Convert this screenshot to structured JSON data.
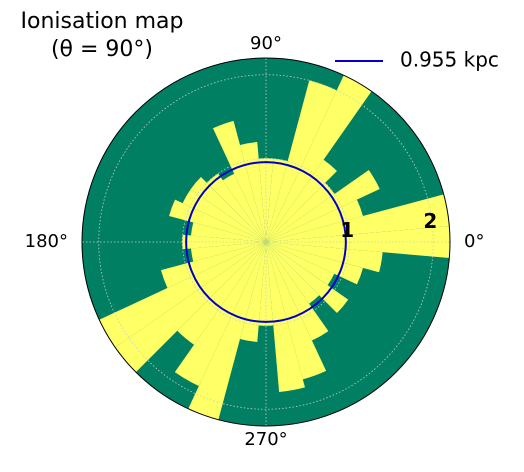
{
  "chart_data": {
    "type": "polar",
    "title": "Ionisation map",
    "subtitle": "(θ = 90°)",
    "rlim": [
      0,
      2.2
    ],
    "rticks": [
      1,
      2
    ],
    "thetaticks": [
      {
        "value": 0,
        "label": "0°"
      },
      {
        "value": 90,
        "label": "90°"
      },
      {
        "value": 180,
        "label": "180°"
      },
      {
        "value": 270,
        "label": "270°"
      }
    ],
    "grid": true,
    "legend": "upper right",
    "map": {
      "background": "#007f62",
      "color": "#ffff66",
      "x": [
        0,
        10,
        20,
        30,
        40,
        50,
        60,
        70,
        80,
        90,
        100,
        110,
        120,
        130,
        140,
        150,
        160,
        170,
        180,
        190,
        200,
        210,
        220,
        230,
        240,
        250,
        260,
        270,
        280,
        290,
        300,
        310,
        320,
        330,
        340,
        350
      ],
      "values": [
        2.2,
        2.2,
        1.2,
        1.5,
        1.0,
        1.2,
        2.2,
        2.0,
        1.0,
        1.0,
        1.2,
        1.5,
        0.9,
        1.0,
        1.1,
        1.1,
        1.2,
        0.9,
        1.0,
        0.9,
        1.3,
        2.2,
        2.2,
        1.5,
        1.9,
        2.2,
        1.2,
        1.0,
        1.8,
        1.7,
        1.3,
        0.9,
        1.2,
        0.9,
        1.2,
        1.4
      ]
    },
    "series": [
      {
        "name": "0.955 kpc",
        "color": "#0000cc",
        "values": [
          0.955
        ]
      }
    ]
  }
}
